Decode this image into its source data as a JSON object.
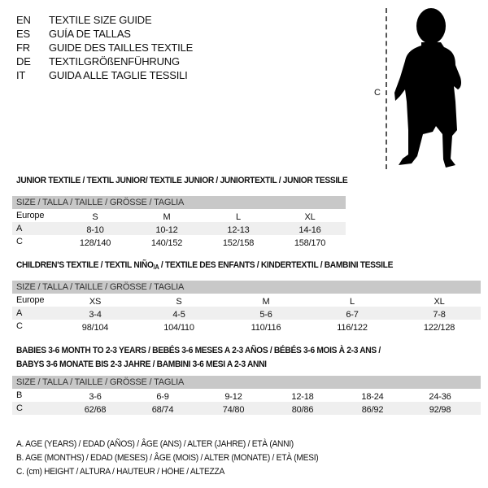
{
  "languages": [
    {
      "code": "EN",
      "text": "TEXTILE SIZE GUIDE"
    },
    {
      "code": "ES",
      "text": "GUÍA DE TALLAS"
    },
    {
      "code": "FR",
      "text": "GUIDE DES TAILLES TEXTILE"
    },
    {
      "code": "DE",
      "text": "TEXTILGRÖßENFÜHRUNG"
    },
    {
      "code": "IT",
      "text": "GUIDA ALLE TAGLIE TESSILI"
    }
  ],
  "figure": {
    "label": "C",
    "icon": "child-silhouette-icon"
  },
  "junior": {
    "title": "JUNIOR TEXTILE / TEXTIL JUNIOR/ TEXTILE JUNIOR / JUNIORTEXTIL / JUNIOR TESSILE",
    "header": "SIZE / TALLA / TAILLE / GRÖSSE / TAGLIA",
    "rows": [
      {
        "label": "Europe",
        "cells": [
          "S",
          "M",
          "L",
          "XL"
        ]
      },
      {
        "label": "A",
        "cells": [
          "8-10",
          "10-12",
          "12-13",
          "14-16"
        ]
      },
      {
        "label": "C",
        "cells": [
          "128/140",
          "140/152",
          "152/158",
          "158/170"
        ]
      }
    ]
  },
  "children": {
    "title_a": "CHILDREN'S TEXTILE / TEXTIL NIÑO",
    "title_sub": "/A",
    "title_b": " / TEXTILE DES ENFANTS / KINDERTEXTIL / BAMBINI TESSILE",
    "header": "SIZE / TALLA / TAILLE / GRÖSSE / TAGLIA",
    "rows": [
      {
        "label": "Europe",
        "cells": [
          "XS",
          "S",
          "M",
          "L",
          "XL"
        ]
      },
      {
        "label": "A",
        "cells": [
          "3-4",
          "4-5",
          "5-6",
          "6-7",
          "7-8"
        ]
      },
      {
        "label": "C",
        "cells": [
          "98/104",
          "104/110",
          "110/116",
          "116/122",
          "122/128"
        ]
      }
    ]
  },
  "babies": {
    "title_line1": "BABIES 3-6 MONTH TO 2-3 YEARS / BEBÉS 3-6 MESES A 2-3 AÑOS / BÉBÉS 3-6 MOIS À 2-3 ANS /",
    "title_line2": "BABYS 3-6 MONATE BIS 2-3 JAHRE / BAMBINI 3-6 MESI A 2-3 ANNI",
    "header": "SIZE / TALLA / TAILLE / GRÖSSE / TAGLIA",
    "rows": [
      {
        "label": "B",
        "cells": [
          "3-6",
          "6-9",
          "9-12",
          "12-18",
          "18-24",
          "24-36"
        ]
      },
      {
        "label": "C",
        "cells": [
          "62/68",
          "68/74",
          "74/80",
          "80/86",
          "86/92",
          "92/98"
        ]
      }
    ]
  },
  "legend": [
    "A. AGE (YEARS) / EDAD (AÑOS) / ÂGE (ANS) / ALTER (JAHRE) / ETÀ (ANNI)",
    "B. AGE (MONTHS) / EDAD (MESES) / ÂGE (MOIS) / ALTER (MONATE) / ETÀ (MESI)",
    "C. (cm) HEIGHT / ALTURA / HAUTEUR / HÖHE / ALTEZZA"
  ]
}
